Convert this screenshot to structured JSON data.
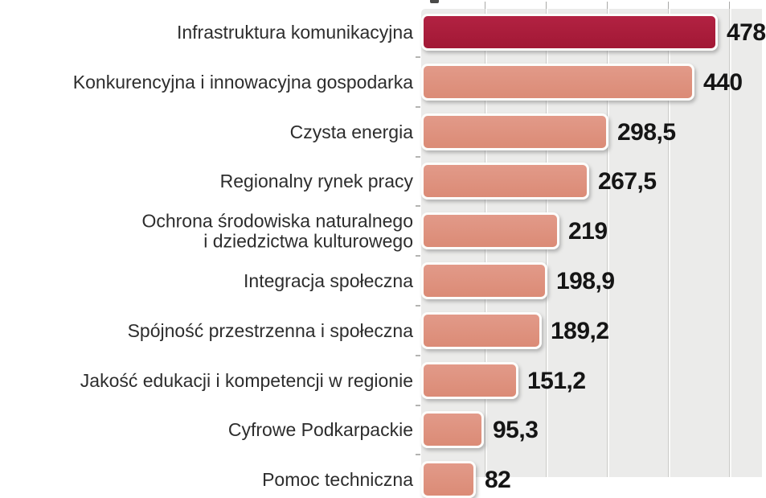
{
  "chart_data": {
    "type": "bar",
    "orientation": "horizontal",
    "title": "",
    "xlabel": "",
    "ylabel": "",
    "xlim": [
      0,
      560
    ],
    "gridline_interval": 100,
    "grid": true,
    "legend": "none",
    "rows": [
      {
        "label_lines": [
          "Infrastruktura komunikacyjna"
        ],
        "value": 478,
        "value_label": "478",
        "highlighted": true
      },
      {
        "label_lines": [
          "Konkurencyjna i innowacyjna gospodarka"
        ],
        "value": 440,
        "value_label": "440",
        "highlighted": false
      },
      {
        "label_lines": [
          "Czysta energia"
        ],
        "value": 298.5,
        "value_label": "298,5",
        "highlighted": false
      },
      {
        "label_lines": [
          "Regionalny rynek pracy"
        ],
        "value": 267.5,
        "value_label": "267,5",
        "highlighted": false
      },
      {
        "label_lines": [
          "Ochrona środowiska naturalnego",
          "i dziedzictwa kulturowego"
        ],
        "value": 219,
        "value_label": "219",
        "highlighted": false
      },
      {
        "label_lines": [
          "Integracja społeczna"
        ],
        "value": 198.9,
        "value_label": "198,9",
        "highlighted": false
      },
      {
        "label_lines": [
          "Spójność przestrzenna i społeczna"
        ],
        "value": 189.2,
        "value_label": "189,2",
        "highlighted": false
      },
      {
        "label_lines": [
          "Jakość edukacji i kompetencji w regionie"
        ],
        "value": 151.2,
        "value_label": "151,2",
        "highlighted": false
      },
      {
        "label_lines": [
          "Cyfrowe Podkarpackie"
        ],
        "value": 95.3,
        "value_label": "95,3",
        "highlighted": false
      },
      {
        "label_lines": [
          "Pomoc techniczna"
        ],
        "value": 82,
        "value_label": "82",
        "highlighted": false
      }
    ],
    "colors": {
      "highlight_bar": "#ad1d3b",
      "bar": "#df9180",
      "bar_border": "#fdfdfb",
      "plot_background": "#ebebea",
      "gridline": "#cbcbc9",
      "value_text": "#151515",
      "label_text": "#2d2d2d",
      "page_background": "#ffffff"
    }
  }
}
